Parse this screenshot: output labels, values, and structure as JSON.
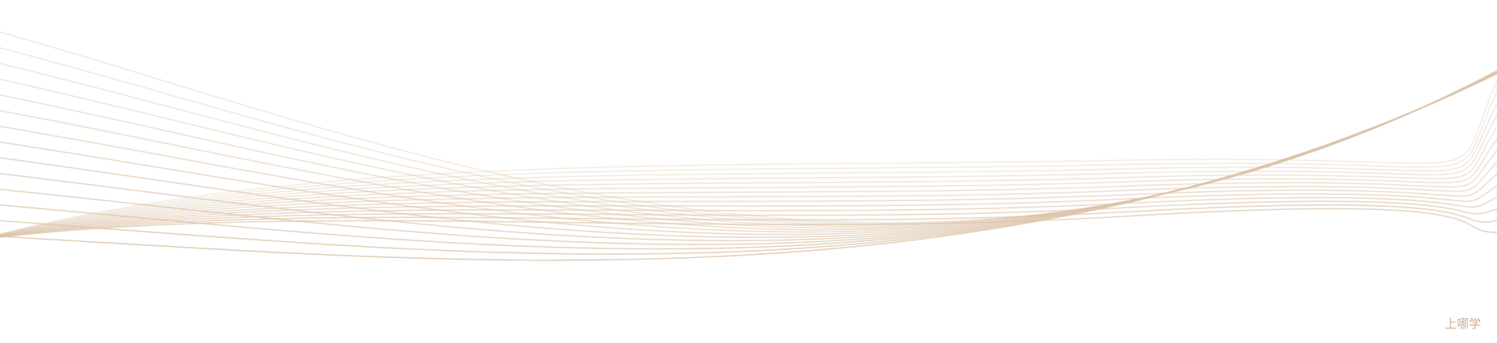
{
  "watermark": "上哪学"
}
